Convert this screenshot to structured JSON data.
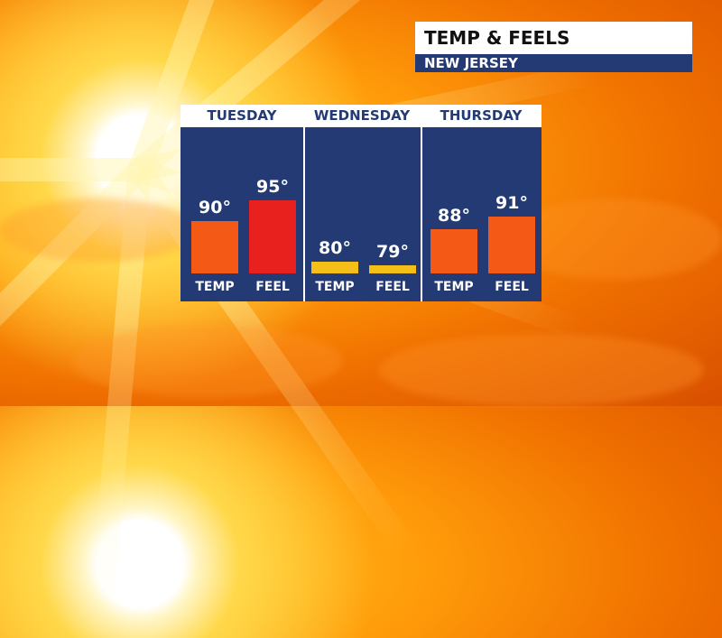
{
  "header": {
    "title": "TEMP & FEELS",
    "subtitle": "NEW JERSEY"
  },
  "colors": {
    "panel_bg": "#233a74",
    "bar_hot": "#f45a16",
    "bar_hotter": "#e8201e",
    "bar_mild": "#f4c018"
  },
  "chart_data": {
    "type": "bar",
    "title": "TEMP & FEELS",
    "subtitle": "NEW JERSEY",
    "days": [
      "TUESDAY",
      "WEDNESDAY",
      "THURSDAY"
    ],
    "bar_labels": [
      "TEMP",
      "FEEL"
    ],
    "value_labels": [
      [
        "90°",
        "95°"
      ],
      [
        "80°",
        "79°"
      ],
      [
        "88°",
        "91°"
      ]
    ],
    "series": [
      {
        "name": "TEMP",
        "values": [
          90,
          80,
          88
        ]
      },
      {
        "name": "FEEL",
        "values": [
          95,
          79,
          91
        ]
      }
    ],
    "unit": "°F",
    "ylim": [
      77,
      97
    ]
  }
}
